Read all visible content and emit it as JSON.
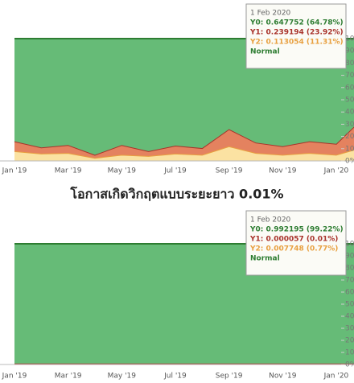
{
  "chart_data": [
    {
      "type": "area",
      "stacked": true,
      "categories": [
        "Jan '19",
        null,
        "Mar '19",
        null,
        "May '19",
        null,
        "Jul '19",
        null,
        "Sep '19",
        null,
        "Nov '19",
        null,
        "Jan '20",
        null
      ],
      "series": [
        {
          "name": "Y0",
          "color": "#66bb77",
          "line_color": "#2e7d32",
          "values": [
            84,
            89,
            87,
            95,
            87,
            92,
            87.5,
            89.5,
            74,
            85,
            88,
            84,
            86,
            64.78
          ]
        },
        {
          "name": "Y1",
          "color": "#e4825f",
          "line_color": "#a8322a",
          "values": [
            8,
            5,
            6.5,
            2.5,
            8,
            4,
            6.5,
            5.5,
            14,
            8.5,
            7,
            9.5,
            9,
            23.92
          ]
        },
        {
          "name": "Y2",
          "color": "#fbe2a2",
          "line_color": "#e8a040",
          "values": [
            8,
            6,
            6.5,
            2.5,
            5,
            4,
            6,
            5,
            12,
            6.5,
            5,
            6.5,
            5,
            11.31
          ]
        }
      ],
      "ylim": [
        0,
        100
      ],
      "yticks": [
        {
          "value": 0,
          "label": "0%"
        },
        {
          "value": 10,
          "label": "10%"
        },
        {
          "value": 20,
          "label": "20%"
        },
        {
          "value": 30,
          "label": "30%"
        },
        {
          "value": 40,
          "label": "40%"
        },
        {
          "value": 50,
          "label": "50%"
        },
        {
          "value": 60,
          "label": "60%"
        },
        {
          "value": 70,
          "label": "70%"
        },
        {
          "value": 80,
          "label": "80%"
        },
        {
          "value": 90,
          "label": "90%"
        },
        {
          "value": 100,
          "label": "100%"
        }
      ],
      "tooltip": {
        "date": "1 Feb 2020",
        "lines": [
          "Y0: 0.647752 (64.78%)",
          "Y1: 0.239194 (23.92%)",
          "Y2: 0.113054 (11.31%)"
        ],
        "status": "Normal"
      }
    },
    {
      "type": "area",
      "stacked": true,
      "title": "โอกาสเกิดวิกฤตแบบระยะยาว 0.01%",
      "categories": [
        "Jan '19",
        null,
        "Mar '19",
        null,
        "May '19",
        null,
        "Jul '19",
        null,
        "Sep '19",
        null,
        "Nov '19",
        null,
        "Jan '20",
        null
      ],
      "series": [
        {
          "name": "Y0",
          "color": "#66bb77",
          "line_color": "#2e7d32",
          "values": [
            99.2,
            99.2,
            99.2,
            99.2,
            99.2,
            99.2,
            99.2,
            99.2,
            99.2,
            99.2,
            99.2,
            99.2,
            99.2,
            99.22
          ]
        },
        {
          "name": "Y1",
          "color": "#e4825f",
          "line_color": "#a8322a",
          "values": [
            0.01,
            0.01,
            0.01,
            0.01,
            0.01,
            0.01,
            0.01,
            0.01,
            0.01,
            0.01,
            0.01,
            0.01,
            0.01,
            0.01
          ]
        },
        {
          "name": "Y2",
          "color": "#fbe2a2",
          "line_color": "#e8a040",
          "values": [
            0.79,
            0.79,
            0.79,
            0.79,
            0.79,
            0.79,
            0.79,
            0.79,
            0.79,
            0.79,
            0.79,
            0.79,
            0.79,
            0.77
          ]
        }
      ],
      "ylim": [
        0,
        100
      ],
      "yticks": [
        {
          "value": 0,
          "label": "0%"
        },
        {
          "value": 10,
          "label": "10%"
        },
        {
          "value": 20,
          "label": "20%"
        },
        {
          "value": 30,
          "label": "30%"
        },
        {
          "value": 40,
          "label": "40%"
        },
        {
          "value": 50,
          "label": "50%"
        },
        {
          "value": 60,
          "label": "60%"
        },
        {
          "value": 70,
          "label": "70%"
        },
        {
          "value": 80,
          "label": "80%"
        },
        {
          "value": 90,
          "label": "90%"
        },
        {
          "value": 100,
          "label": "100%"
        }
      ],
      "tooltip": {
        "date": "1 Feb 2020",
        "lines": [
          "Y0: 0.992195 (99.22%)",
          "Y1: 0.000057 (0.01%)",
          "Y2: 0.007748 (0.77%)"
        ],
        "status": "Normal"
      }
    }
  ]
}
